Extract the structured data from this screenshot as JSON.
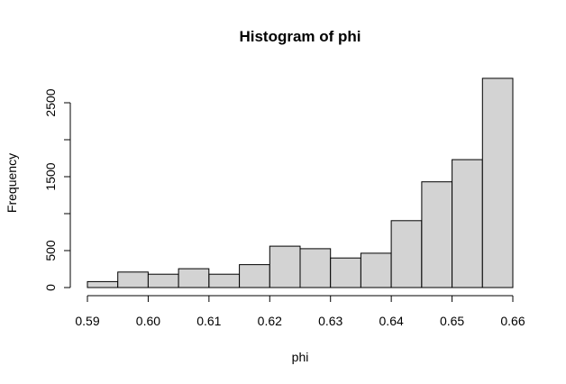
{
  "chart_data": {
    "type": "bar",
    "subtype": "histogram",
    "title": "Histogram of phi",
    "xlabel": "phi",
    "ylabel": "Frequency",
    "xlim": [
      0.59,
      0.66
    ],
    "ylim": [
      0,
      2500
    ],
    "x_ticks": [
      "0.59",
      "0.60",
      "0.61",
      "0.62",
      "0.63",
      "0.64",
      "0.65",
      "0.66"
    ],
    "x_tick_values": [
      0.59,
      0.6,
      0.61,
      0.62,
      0.63,
      0.64,
      0.65,
      0.66
    ],
    "y_ticks": [
      "0",
      "500",
      "1500",
      "2500"
    ],
    "y_tick_values": [
      0,
      500,
      1500,
      2500
    ],
    "y_tick_marks": [
      0,
      500,
      1000,
      1500,
      2000,
      2500
    ],
    "bin_edges": [
      0.59,
      0.595,
      0.6,
      0.605,
      0.61,
      0.615,
      0.62,
      0.625,
      0.63,
      0.635,
      0.64,
      0.645,
      0.65,
      0.655,
      0.66
    ],
    "values": [
      80,
      210,
      180,
      255,
      180,
      310,
      560,
      525,
      400,
      465,
      905,
      1430,
      1730,
      2830
    ],
    "grid": false,
    "legend": "none"
  }
}
